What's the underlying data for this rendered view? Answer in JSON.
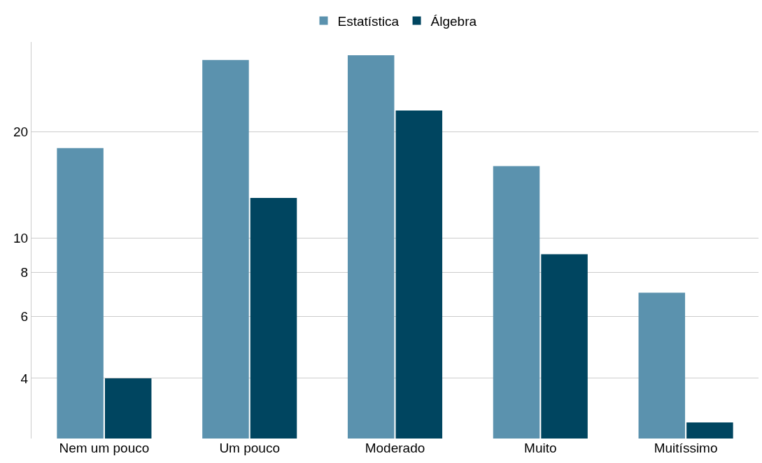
{
  "chart_data": {
    "type": "bar",
    "categories": [
      "Nem um pouco",
      "Um pouco",
      "Moderado",
      "Muito",
      "Muitíssimo"
    ],
    "series": [
      {
        "name": "Estatística",
        "color": "#5b92ae",
        "values": [
          18,
          32,
          33,
          16,
          7
        ]
      },
      {
        "name": "Álgebra",
        "color": "#004560",
        "values": [
          4,
          13,
          23,
          9,
          3
        ]
      }
    ],
    "log": true,
    "ylim": [
      2.7,
      36
    ],
    "yticks": [
      4,
      6,
      8,
      10,
      20
    ],
    "grid": "y",
    "legend": "top"
  }
}
